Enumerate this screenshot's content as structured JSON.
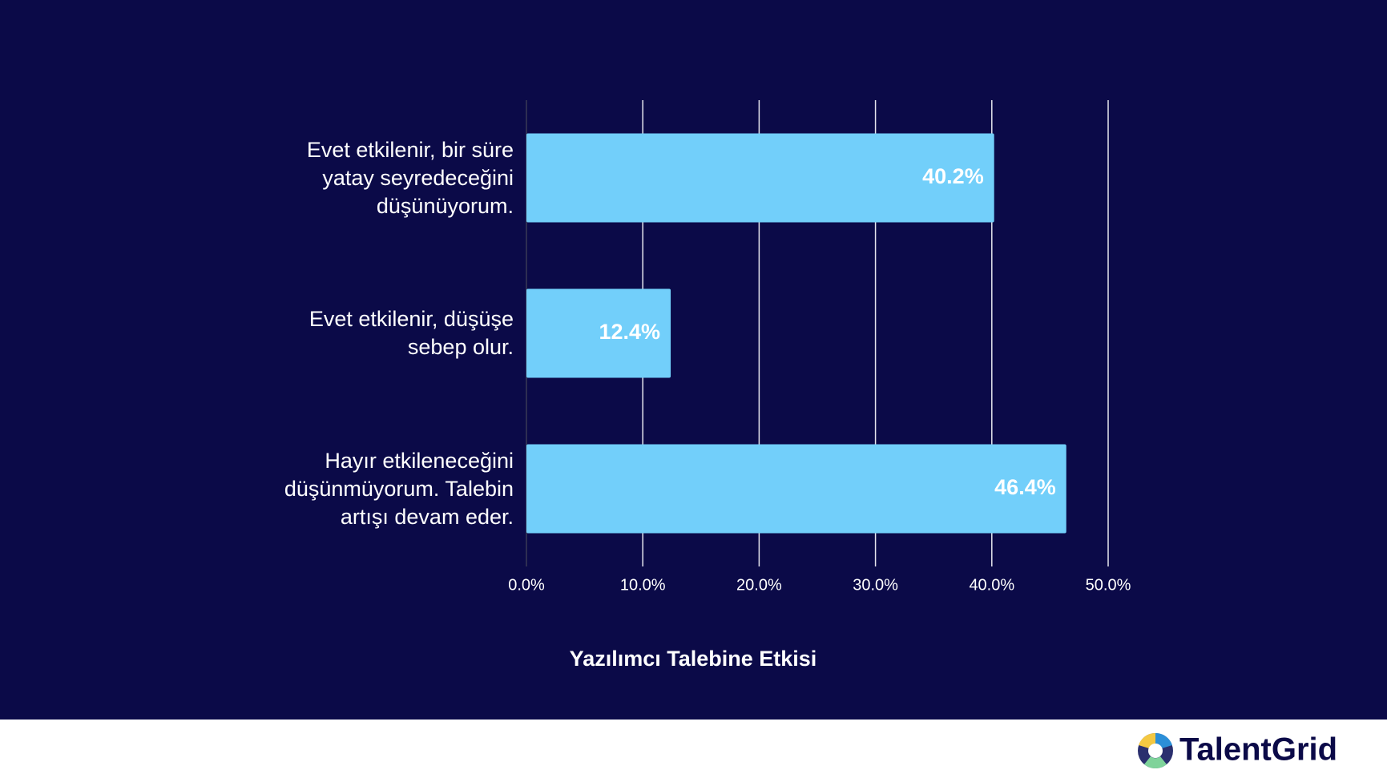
{
  "chart_data": {
    "type": "bar",
    "orientation": "horizontal",
    "title": "Yazılımcı Talebine Etkisi",
    "categories": [
      "Evet etkilenir, bir süre yatay seyredeceğini düşünüyorum.",
      "Evet etkilenir, düşüşe sebep olur.",
      "Hayır etkileneceğini düşünmüyorum. Talebin artışı devam eder."
    ],
    "values": [
      40.2,
      12.4,
      46.4
    ],
    "value_labels": [
      "40.2%",
      "12.4%",
      "46.4%"
    ],
    "color": "#72cffa",
    "xlim": [
      0,
      50
    ],
    "xticks": [
      {
        "value": 0,
        "label": "0.0%"
      },
      {
        "value": 10,
        "label": "10.0%"
      },
      {
        "value": 20,
        "label": "20.0%"
      },
      {
        "value": 30,
        "label": "30.0%"
      },
      {
        "value": 40,
        "label": "40.0%"
      },
      {
        "value": 50,
        "label": "50.0%"
      }
    ],
    "grid": true
  },
  "footer": {
    "brand": "TalentGrid"
  }
}
